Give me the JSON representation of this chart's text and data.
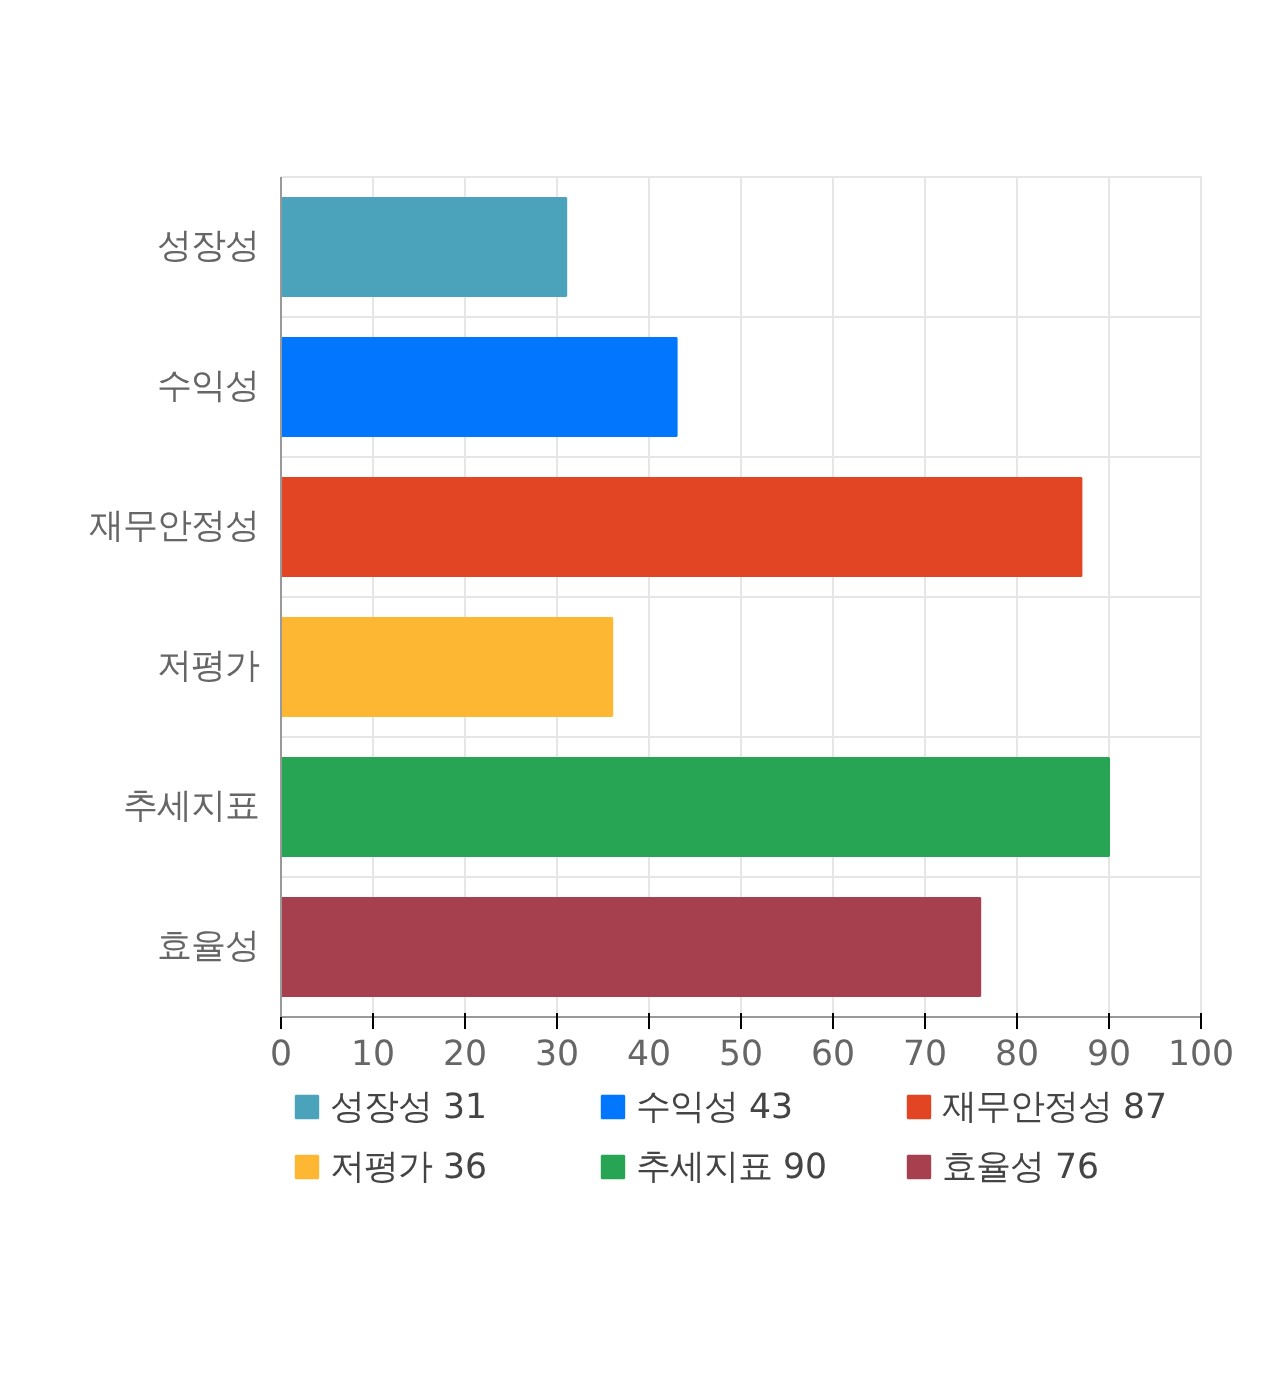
{
  "chart_data": {
    "type": "bar",
    "orientation": "horizontal",
    "stacked": true,
    "categories": [
      "성장성",
      "수익성",
      "재무안정성",
      "저평가",
      "추세지표",
      "효율성"
    ],
    "series": [
      {
        "name": "성장성 31",
        "color": "#4aa3bb",
        "values": [
          31,
          null,
          null,
          null,
          null,
          null
        ]
      },
      {
        "name": "수익성 43",
        "color": "#0277fd",
        "values": [
          null,
          43,
          null,
          null,
          null,
          null
        ]
      },
      {
        "name": "재무안정성 87",
        "color": "#e24523",
        "values": [
          null,
          null,
          87,
          null,
          null,
          null
        ]
      },
      {
        "name": "저평가 36",
        "color": "#feb733",
        "values": [
          null,
          null,
          null,
          36,
          null,
          null
        ]
      },
      {
        "name": "추세지표 90",
        "color": "#27a555",
        "values": [
          null,
          null,
          null,
          null,
          90,
          null
        ]
      },
      {
        "name": "효율성 76",
        "color": "#a6404f",
        "values": [
          null,
          null,
          null,
          null,
          null,
          76
        ]
      }
    ],
    "xlim": [
      0,
      100
    ],
    "xticks": [
      0,
      10,
      20,
      30,
      40,
      50,
      60,
      70,
      80,
      90,
      100
    ],
    "grid": true,
    "legend": "bottom"
  }
}
